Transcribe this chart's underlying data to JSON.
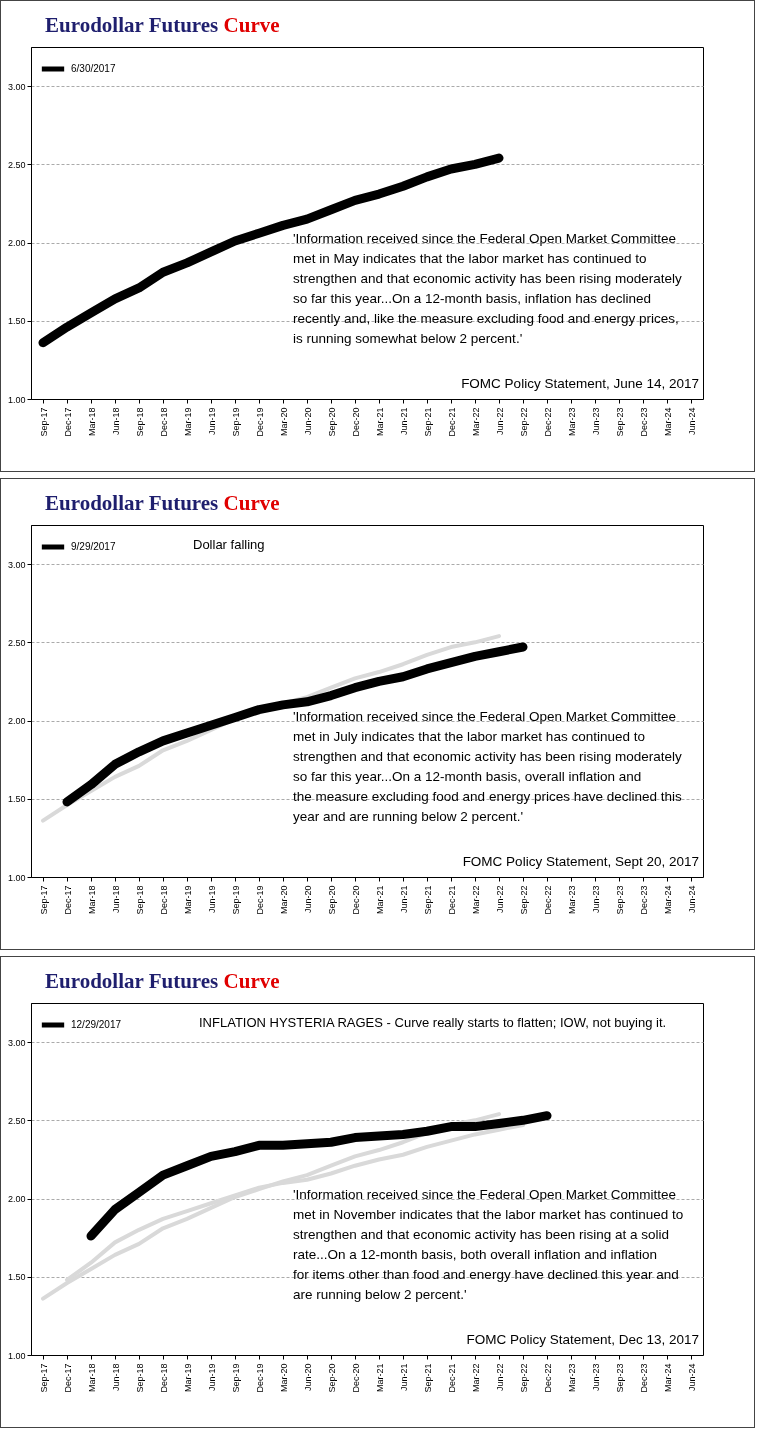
{
  "chart_data": [
    {
      "type": "line",
      "title": "Eurodollar Futures Curve",
      "categories": [
        "Sep-17",
        "Dec-17",
        "Mar-18",
        "Jun-18",
        "Sep-18",
        "Dec-18",
        "Mar-19",
        "Jun-19",
        "Sep-19",
        "Dec-19",
        "Mar-20",
        "Jun-20",
        "Sep-20",
        "Dec-20",
        "Mar-21",
        "Jun-21",
        "Sep-21",
        "Dec-21",
        "Mar-22",
        "Jun-22",
        "Sep-22",
        "Dec-22",
        "Mar-23",
        "Jun-23",
        "Sep-23",
        "Dec-23",
        "Mar-24",
        "Jun-24"
      ],
      "series": [
        {
          "name": "6/30/2017",
          "color": "#000000",
          "values": [
            1.36,
            1.46,
            1.55,
            1.64,
            1.71,
            1.81,
            1.87,
            1.94,
            2.01,
            2.06,
            2.11,
            2.15,
            2.21,
            2.27,
            2.31,
            2.36,
            2.42,
            2.47,
            2.5,
            2.54,
            null,
            null,
            null,
            null,
            null,
            null,
            null,
            null
          ]
        }
      ],
      "ylim": [
        1,
        3.25
      ],
      "yticks": [
        {
          "value": 1,
          "label": "1.00"
        },
        {
          "value": 1.5,
          "label": "1.50"
        },
        {
          "value": 2,
          "label": "2.00"
        },
        {
          "value": 2.5,
          "label": "2.50"
        },
        {
          "value": 3,
          "label": "3.00"
        }
      ],
      "grid": "y",
      "legend": "top left",
      "annotations": [
        "'Information received since the Federal Open Market Committee met in May indicates that the labor market has continued to strengthen and that economic activity has been rising moderately so far this year...On a 12-month basis, inflation has declined recently and, like the measure excluding food and energy prices, is running somewhat below 2 percent.'",
        "FOMC Policy Statement,  June 14, 2017"
      ]
    },
    {
      "type": "line",
      "title": "Eurodollar Futures Curve",
      "subtitle": "Dollar falling",
      "categories": [
        "Sep-17",
        "Dec-17",
        "Mar-18",
        "Jun-18",
        "Sep-18",
        "Dec-18",
        "Mar-19",
        "Jun-19",
        "Sep-19",
        "Dec-19",
        "Mar-20",
        "Jun-20",
        "Sep-20",
        "Dec-20",
        "Mar-21",
        "Jun-21",
        "Sep-21",
        "Dec-21",
        "Mar-22",
        "Jun-22",
        "Sep-22",
        "Dec-22",
        "Mar-23",
        "Jun-23",
        "Sep-23",
        "Dec-23",
        "Mar-24",
        "Jun-24"
      ],
      "series": [
        {
          "color": "#d9d9d9",
          "values": [
            1.36,
            1.46,
            1.55,
            1.64,
            1.71,
            1.81,
            1.87,
            1.94,
            2.01,
            2.06,
            2.11,
            2.15,
            2.21,
            2.27,
            2.31,
            2.36,
            2.42,
            2.47,
            2.5,
            2.54,
            null,
            null,
            null,
            null,
            null,
            null,
            null,
            null
          ]
        },
        {
          "name": "9/29/2017",
          "color": "#000000",
          "values": [
            null,
            1.48,
            1.59,
            1.72,
            1.8,
            1.87,
            1.92,
            1.97,
            2.02,
            2.07,
            2.1,
            2.12,
            2.16,
            2.21,
            2.25,
            2.28,
            2.33,
            2.37,
            2.41,
            2.44,
            2.47,
            null,
            null,
            null,
            null,
            null,
            null,
            null
          ]
        }
      ],
      "ylim": [
        1,
        3.25
      ],
      "yticks": [
        {
          "value": 1,
          "label": "1.00"
        },
        {
          "value": 1.5,
          "label": "1.50"
        },
        {
          "value": 2,
          "label": "2.00"
        },
        {
          "value": 2.5,
          "label": "2.50"
        },
        {
          "value": 3,
          "label": "3.00"
        }
      ],
      "grid": "y",
      "legend": "top left",
      "annotations": [
        "'Information received since the Federal Open Market Committee met in July indicates that the labor market has continued to strengthen and that economic activity has been rising moderately so far this year...On a 12-month basis, overall inflation and the measure excluding food and energy prices have declined this year and are running below 2 percent.'",
        "FOMC Policy Statement,  Sept 20, 2017"
      ]
    },
    {
      "type": "line",
      "title": "Eurodollar Futures Curve",
      "subtitle": "INFLATION HYSTERIA RAGES - Curve really starts to flatten; IOW, not buying it.",
      "categories": [
        "Sep-17",
        "Dec-17",
        "Mar-18",
        "Jun-18",
        "Sep-18",
        "Dec-18",
        "Mar-19",
        "Jun-19",
        "Sep-19",
        "Dec-19",
        "Mar-20",
        "Jun-20",
        "Sep-20",
        "Dec-20",
        "Mar-21",
        "Jun-21",
        "Sep-21",
        "Dec-21",
        "Mar-22",
        "Jun-22",
        "Sep-22",
        "Dec-22",
        "Mar-23",
        "Jun-23",
        "Sep-23",
        "Dec-23",
        "Mar-24",
        "Jun-24"
      ],
      "series": [
        {
          "color": "#d9d9d9",
          "values": [
            1.36,
            1.46,
            1.55,
            1.64,
            1.71,
            1.81,
            1.87,
            1.94,
            2.01,
            2.06,
            2.11,
            2.15,
            2.21,
            2.27,
            2.31,
            2.36,
            2.42,
            2.47,
            2.5,
            2.54,
            null,
            null,
            null,
            null,
            null,
            null,
            null,
            null
          ]
        },
        {
          "color": "#d9d9d9",
          "values": [
            null,
            1.48,
            1.59,
            1.72,
            1.8,
            1.87,
            1.92,
            1.97,
            2.02,
            2.07,
            2.1,
            2.12,
            2.16,
            2.21,
            2.25,
            2.28,
            2.33,
            2.37,
            2.41,
            2.44,
            2.47,
            null,
            null,
            null,
            null,
            null,
            null,
            null
          ]
        },
        {
          "name": "12/29/2017",
          "color": "#000000",
          "values": [
            null,
            null,
            1.76,
            1.93,
            2.04,
            2.15,
            2.21,
            2.27,
            2.3,
            2.34,
            2.34,
            2.35,
            2.36,
            2.39,
            2.4,
            2.41,
            2.43,
            2.46,
            2.46,
            2.48,
            2.5,
            2.53,
            null,
            null,
            null,
            null,
            null,
            null
          ]
        }
      ],
      "ylim": [
        1,
        3.25
      ],
      "yticks": [
        {
          "value": 1,
          "label": "1.00"
        },
        {
          "value": 1.5,
          "label": "1.50"
        },
        {
          "value": 2,
          "label": "2.00"
        },
        {
          "value": 2.5,
          "label": "2.50"
        },
        {
          "value": 3,
          "label": "3.00"
        }
      ],
      "grid": "y",
      "legend": "top left",
      "annotations": [
        "'Information received since the Federal Open Market Committee met in November indicates that the labor market has continued to strengthen and that economic activity has been rising at a solid rate...On a 12-month basis, both overall inflation and inflation for items other than food and energy have declined this year and are running below 2 percent.'",
        "FOMC Policy Statement,  Dec 13, 2017"
      ]
    }
  ]
}
